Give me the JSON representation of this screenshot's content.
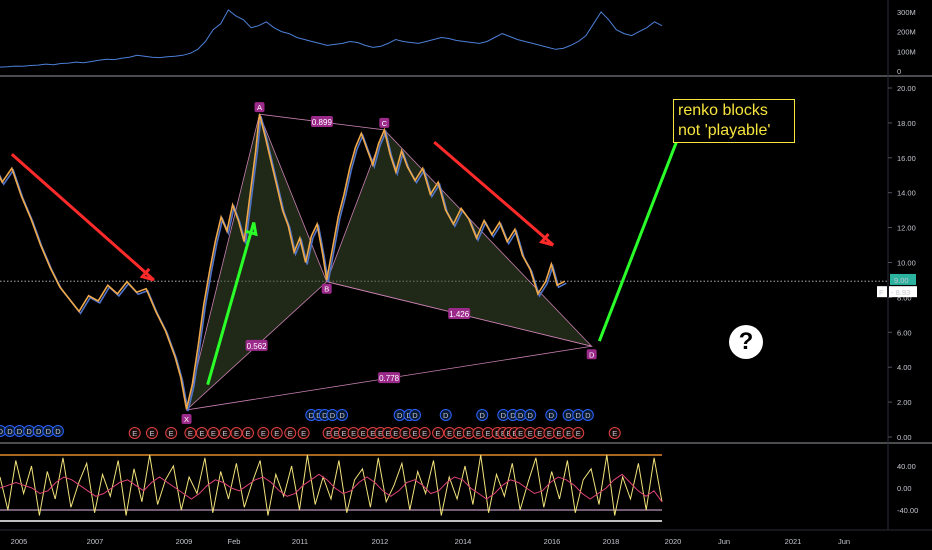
{
  "chart_data": [
    {
      "type": "line",
      "panel": "volume",
      "series": [
        {
          "color": "#4c7fd6",
          "values": [
            20,
            22,
            25,
            24,
            28,
            30,
            35,
            32,
            38,
            40,
            45,
            42,
            48,
            55,
            60,
            58,
            65,
            70,
            80,
            75,
            70,
            68,
            72,
            75,
            80,
            90,
            110,
            150,
            210,
            240,
            310,
            280,
            260,
            220,
            230,
            250,
            220,
            200,
            190,
            170,
            160,
            150,
            140,
            130,
            135,
            140,
            150,
            145,
            130,
            120,
            125,
            140,
            160,
            150,
            145,
            140,
            150,
            160,
            170,
            165,
            155,
            150,
            145,
            140,
            150,
            170,
            190,
            175,
            160,
            150,
            140,
            130,
            120,
            110,
            115,
            130,
            150,
            180,
            240,
            300,
            260,
            210,
            190,
            180,
            200,
            220,
            250,
            230
          ]
        }
      ],
      "ylim": [
        0,
        320000000
      ],
      "y_ticks": [
        "300M",
        "200M",
        "100M",
        "0"
      ]
    },
    {
      "type": "line",
      "panel": "price",
      "x_ticks": [
        "2005",
        "2007",
        "2009",
        "Feb",
        "2011",
        "2012",
        "2014",
        "2016",
        "2018",
        "2020",
        "Jun",
        "2021",
        "Jun"
      ],
      "y_ticks": [
        "20.00",
        "18.00",
        "16.00",
        "14.00",
        "12.00",
        "10.00",
        "8.00",
        "6.00",
        "4.00",
        "2.00",
        "0.00"
      ],
      "ylim": [
        0,
        20.8
      ],
      "price_series": [
        {
          "x": 2004.05,
          "y": 14.9
        },
        {
          "x": 2004.3,
          "y": 15.8
        },
        {
          "x": 2004.55,
          "y": 14.6
        },
        {
          "x": 2004.8,
          "y": 15.4
        },
        {
          "x": 2005.05,
          "y": 13.8
        },
        {
          "x": 2005.3,
          "y": 12.5
        },
        {
          "x": 2005.55,
          "y": 11.0
        },
        {
          "x": 2005.8,
          "y": 9.7
        },
        {
          "x": 2006.05,
          "y": 8.6
        },
        {
          "x": 2006.3,
          "y": 7.9
        },
        {
          "x": 2006.55,
          "y": 7.2
        },
        {
          "x": 2006.8,
          "y": 8.1
        },
        {
          "x": 2007.05,
          "y": 7.8
        },
        {
          "x": 2007.3,
          "y": 8.7
        },
        {
          "x": 2007.55,
          "y": 8.2
        },
        {
          "x": 2007.8,
          "y": 8.9
        },
        {
          "x": 2008.05,
          "y": 8.3
        },
        {
          "x": 2008.3,
          "y": 8.5
        },
        {
          "x": 2008.55,
          "y": 7.2
        },
        {
          "x": 2008.8,
          "y": 6.1
        },
        {
          "x": 2009.05,
          "y": 4.6
        },
        {
          "x": 2009.2,
          "y": 3.4
        },
        {
          "x": 2009.35,
          "y": 1.6
        },
        {
          "x": 2009.5,
          "y": 3.0
        },
        {
          "x": 2009.65,
          "y": 5.2
        },
        {
          "x": 2009.8,
          "y": 7.6
        },
        {
          "x": 2009.95,
          "y": 9.5
        },
        {
          "x": 2010.1,
          "y": 11.2
        },
        {
          "x": 2010.25,
          "y": 12.6
        },
        {
          "x": 2010.4,
          "y": 11.8
        },
        {
          "x": 2010.55,
          "y": 13.3
        },
        {
          "x": 2010.7,
          "y": 12.4
        },
        {
          "x": 2010.85,
          "y": 11.2
        },
        {
          "x": 2011.0,
          "y": 13.8
        },
        {
          "x": 2011.15,
          "y": 16.4
        },
        {
          "x": 2011.25,
          "y": 18.5
        },
        {
          "x": 2011.4,
          "y": 17.2
        },
        {
          "x": 2011.55,
          "y": 15.8
        },
        {
          "x": 2011.7,
          "y": 14.4
        },
        {
          "x": 2011.85,
          "y": 13.0
        },
        {
          "x": 2012.0,
          "y": 12.1
        },
        {
          "x": 2012.15,
          "y": 10.6
        },
        {
          "x": 2012.3,
          "y": 11.4
        },
        {
          "x": 2012.45,
          "y": 10.0
        },
        {
          "x": 2012.6,
          "y": 11.5
        },
        {
          "x": 2012.75,
          "y": 12.2
        },
        {
          "x": 2012.9,
          "y": 10.4
        },
        {
          "x": 2013.0,
          "y": 9.0
        },
        {
          "x": 2013.15,
          "y": 10.8
        },
        {
          "x": 2013.3,
          "y": 12.6
        },
        {
          "x": 2013.45,
          "y": 13.9
        },
        {
          "x": 2013.6,
          "y": 15.4
        },
        {
          "x": 2013.75,
          "y": 16.6
        },
        {
          "x": 2013.9,
          "y": 17.4
        },
        {
          "x": 2014.05,
          "y": 16.5
        },
        {
          "x": 2014.2,
          "y": 15.6
        },
        {
          "x": 2014.35,
          "y": 16.8
        },
        {
          "x": 2014.5,
          "y": 17.6
        },
        {
          "x": 2014.65,
          "y": 16.2
        },
        {
          "x": 2014.8,
          "y": 15.2
        },
        {
          "x": 2014.95,
          "y": 16.4
        },
        {
          "x": 2015.1,
          "y": 15.5
        },
        {
          "x": 2015.3,
          "y": 14.7
        },
        {
          "x": 2015.5,
          "y": 15.4
        },
        {
          "x": 2015.7,
          "y": 13.9
        },
        {
          "x": 2015.9,
          "y": 14.6
        },
        {
          "x": 2016.1,
          "y": 13.0
        },
        {
          "x": 2016.3,
          "y": 12.2
        },
        {
          "x": 2016.5,
          "y": 13.1
        },
        {
          "x": 2016.7,
          "y": 12.5
        },
        {
          "x": 2016.9,
          "y": 11.4
        },
        {
          "x": 2017.1,
          "y": 12.4
        },
        {
          "x": 2017.3,
          "y": 11.6
        },
        {
          "x": 2017.5,
          "y": 12.3
        },
        {
          "x": 2017.7,
          "y": 11.2
        },
        {
          "x": 2017.9,
          "y": 11.9
        },
        {
          "x": 2018.1,
          "y": 10.4
        },
        {
          "x": 2018.3,
          "y": 9.6
        },
        {
          "x": 2018.5,
          "y": 8.2
        },
        {
          "x": 2018.7,
          "y": 8.9
        },
        {
          "x": 2018.85,
          "y": 9.9
        },
        {
          "x": 2019.0,
          "y": 8.7
        },
        {
          "x": 2019.2,
          "y": 8.93
        }
      ],
      "harmonic_pattern": {
        "points": [
          {
            "label": "X",
            "x": 2009.35,
            "y": 1.55
          },
          {
            "label": "A",
            "x": 2011.25,
            "y": 18.5
          },
          {
            "label": "B",
            "x": 2013.0,
            "y": 8.9
          },
          {
            "label": "C",
            "x": 2014.5,
            "y": 17.6
          },
          {
            "label": "D",
            "x": 2019.9,
            "y": 5.2
          }
        ],
        "ratios": [
          "0.899",
          "1.426",
          "0.562",
          "0.778"
        ],
        "fill_color": "#3a4a2a",
        "line_color": "#c77fb0"
      },
      "last_price_tag": "9.00",
      "price_tag_2": "8.93",
      "price_tag_2_prefix": "F",
      "current_price": 8.93,
      "annotation_box": [
        "renko blocks",
        "not 'playable'"
      ],
      "question_mark": "?",
      "arrows": [
        {
          "color": "#ff2a2a",
          "from": {
            "x": 2004.8,
            "y": 16.2
          },
          "to": {
            "x": 2008.5,
            "y": 9.0
          }
        },
        {
          "color": "#2aff2a",
          "from": {
            "x": 2009.9,
            "y": 3.0
          },
          "to": {
            "x": 2011.1,
            "y": 12.3
          }
        },
        {
          "color": "#ff2a2a",
          "from": {
            "x": 2015.8,
            "y": 16.9
          },
          "to": {
            "x": 2018.9,
            "y": 11.0
          }
        },
        {
          "color": "#2aff2a",
          "from": {
            "x": 2020.1,
            "y": 5.5
          },
          "to": {
            "x": 2022.3,
            "y": 18.0
          }
        }
      ],
      "event_markers": {
        "dividend_label": "D",
        "earnings_label": "E",
        "dividend_x": [
          2004.0,
          2004.25,
          2004.5,
          2004.75,
          2005.0,
          2005.25,
          2005.5,
          2005.75,
          2006.0,
          2012.6,
          2012.8,
          2012.95,
          2013.15,
          2013.4,
          2014.9,
          2015.15,
          2015.3,
          2016.1,
          2017.05,
          2017.6,
          2017.85,
          2018.05,
          2018.3,
          2018.85,
          2019.3,
          2019.55,
          2019.8
        ],
        "earnings_x": [
          2008.0,
          2008.45,
          2008.95,
          2009.45,
          2009.75,
          2010.05,
          2010.35,
          2010.65,
          2010.95,
          2011.35,
          2011.7,
          2012.05,
          2012.4,
          2013.05,
          2013.25,
          2013.45,
          2013.7,
          2013.95,
          2014.2,
          2014.4,
          2014.6,
          2014.8,
          2015.05,
          2015.3,
          2015.55,
          2015.9,
          2016.2,
          2016.45,
          2016.7,
          2016.95,
          2017.2,
          2017.45,
          2017.6,
          2017.75,
          2017.9,
          2018.05,
          2018.3,
          2018.55,
          2018.8,
          2019.05,
          2019.3,
          2019.55,
          2020.5
        ]
      }
    },
    {
      "type": "line",
      "panel": "oscillator",
      "ylim": [
        -60,
        80
      ],
      "y_ticks": [
        "40.00",
        "0.00",
        "-40.00"
      ],
      "reference_lines": [
        {
          "y": 60,
          "color": "#e08a2a"
        },
        {
          "y": -60,
          "color": "#ffffff"
        },
        {
          "y": -40,
          "color": "#9a7a9a"
        }
      ],
      "series": [
        {
          "color": "#f2e27a",
          "values": [
            20,
            -40,
            50,
            -10,
            40,
            -50,
            30,
            -20,
            55,
            -35,
            10,
            45,
            -45,
            25,
            -15,
            50,
            -50,
            35,
            -25,
            60,
            -30,
            15,
            40,
            -40,
            20,
            -10,
            55,
            -45,
            30,
            -20,
            45,
            -35,
            10,
            50,
            -50,
            25,
            -15,
            40,
            -40,
            60,
            -30,
            20,
            -20,
            50,
            -45,
            15,
            35,
            -35,
            55,
            -25,
            5,
            45,
            -40,
            30,
            -10,
            50,
            -50,
            20,
            -20,
            40,
            -30,
            60,
            -45,
            25,
            -15,
            45,
            -40,
            10,
            55,
            -35,
            30,
            -20,
            50,
            -45,
            15,
            35,
            -30,
            60,
            -50,
            20,
            -20,
            45,
            -40,
            55,
            -25
          ]
        },
        {
          "color": "#e0427a",
          "values": [
            0,
            5,
            10,
            5,
            0,
            -10,
            -5,
            10,
            20,
            15,
            5,
            -5,
            -15,
            -10,
            0,
            10,
            15,
            5,
            -5,
            10,
            20,
            10,
            0,
            -10,
            -20,
            -10,
            5,
            15,
            10,
            0,
            -5,
            5,
            15,
            20,
            10,
            -5,
            -15,
            -10,
            5,
            15,
            25,
            15,
            0,
            -10,
            -5,
            10,
            20,
            10,
            -5,
            -15,
            -5,
            10,
            15,
            5,
            -10,
            -5,
            10,
            20,
            15,
            0,
            -10,
            -20,
            -10,
            5,
            15,
            10,
            0,
            -10,
            -5,
            10,
            20,
            15,
            5,
            -10,
            -20,
            -10,
            0,
            15,
            25,
            10,
            -5,
            -15,
            -5,
            -25
          ]
        }
      ]
    }
  ]
}
